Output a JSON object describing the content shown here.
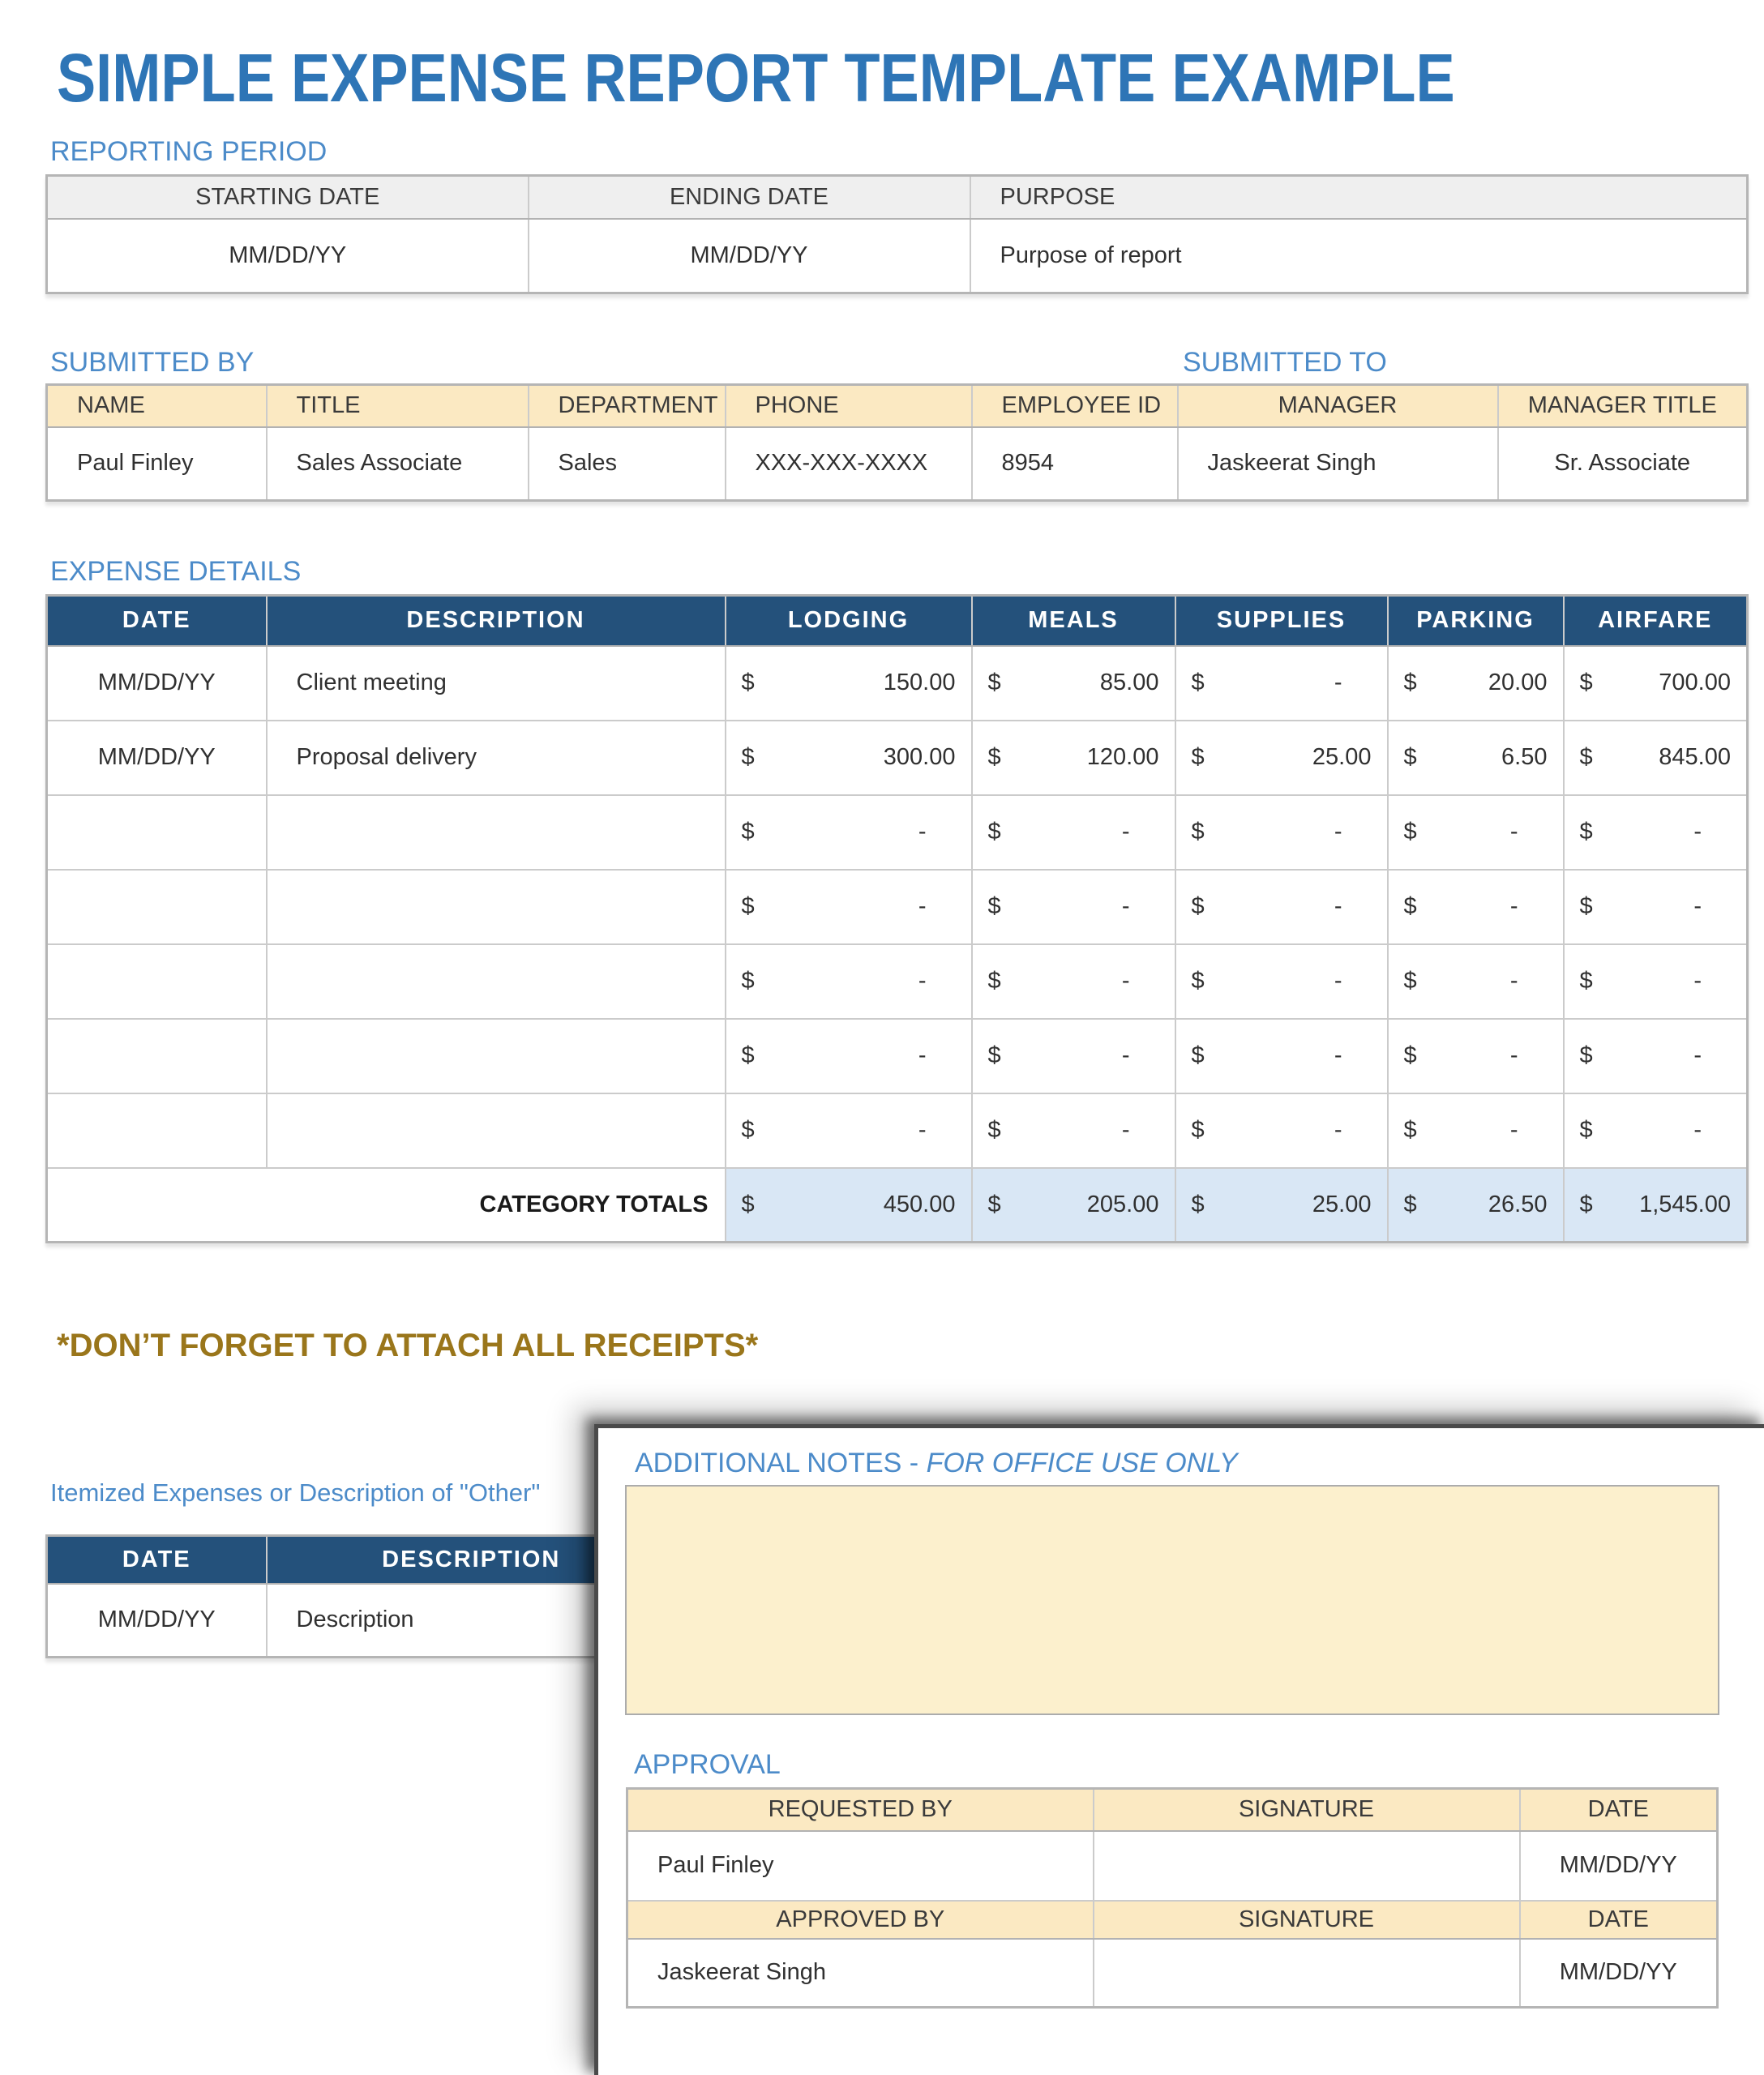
{
  "title": "SIMPLE EXPENSE REPORT TEMPLATE EXAMPLE",
  "colors": {
    "title_blue": "#2E75B6",
    "label_blue": "#4C8BC9",
    "dark_header": "#24517B",
    "tan_header": "#FBE9C2",
    "gray_header": "#EFEFEF",
    "totals_blue": "#D9E7F5",
    "gold_note": "#9A761B",
    "notes_box_bg": "#FCF0CD"
  },
  "reporting_period": {
    "label": "REPORTING PERIOD",
    "headers": [
      "STARTING DATE",
      "ENDING DATE",
      "PURPOSE"
    ],
    "row": [
      "MM/DD/YY",
      "MM/DD/YY",
      "Purpose of report"
    ]
  },
  "submitted": {
    "label_by": "SUBMITTED BY",
    "label_to": "SUBMITTED TO",
    "headers": [
      "NAME",
      "TITLE",
      "DEPARTMENT",
      "PHONE",
      "EMPLOYEE ID",
      "MANAGER",
      "MANAGER TITLE"
    ],
    "row": [
      "Paul Finley",
      "Sales Associate",
      "Sales",
      "XXX-XXX-XXXX",
      "8954",
      "Jaskeerat Singh",
      "Sr. Associate"
    ]
  },
  "expense_details": {
    "label": "EXPENSE DETAILS",
    "currency": "$",
    "headers": [
      "DATE",
      "DESCRIPTION",
      "LODGING",
      "MEALS",
      "SUPPLIES",
      "PARKING",
      "AIRFARE"
    ],
    "rows": [
      {
        "date": "MM/DD/YY",
        "description": "Client meeting",
        "amounts": [
          "150.00",
          "85.00",
          "-",
          "20.00",
          "700.00"
        ]
      },
      {
        "date": "MM/DD/YY",
        "description": "Proposal delivery",
        "amounts": [
          "300.00",
          "120.00",
          "25.00",
          "6.50",
          "845.00"
        ]
      },
      {
        "date": "",
        "description": "",
        "amounts": [
          "-",
          "-",
          "-",
          "-",
          "-"
        ]
      },
      {
        "date": "",
        "description": "",
        "amounts": [
          "-",
          "-",
          "-",
          "-",
          "-"
        ]
      },
      {
        "date": "",
        "description": "",
        "amounts": [
          "-",
          "-",
          "-",
          "-",
          "-"
        ]
      },
      {
        "date": "",
        "description": "",
        "amounts": [
          "-",
          "-",
          "-",
          "-",
          "-"
        ]
      },
      {
        "date": "",
        "description": "",
        "amounts": [
          "-",
          "-",
          "-",
          "-",
          "-"
        ]
      }
    ],
    "totals_label": "CATEGORY TOTALS",
    "totals": [
      "450.00",
      "205.00",
      "25.00",
      "26.50",
      "1,545.00"
    ]
  },
  "receipts_note": "*DON’T FORGET TO ATTACH ALL RECEIPTS*",
  "itemized": {
    "label": "Itemized Expenses or Description of \"Other\"",
    "headers": [
      "DATE",
      "DESCRIPTION"
    ],
    "row": [
      "MM/DD/YY",
      "Description"
    ]
  },
  "notes_panel": {
    "title_regular": "ADDITIONAL NOTES - ",
    "title_italic": "FOR OFFICE USE ONLY"
  },
  "approval": {
    "label": "APPROVAL",
    "header_requested": [
      "REQUESTED BY",
      "SIGNATURE",
      "DATE"
    ],
    "row_requested": [
      "Paul Finley",
      "",
      "MM/DD/YY"
    ],
    "header_approved": [
      "APPROVED BY",
      "SIGNATURE",
      "DATE"
    ],
    "row_approved": [
      "Jaskeerat Singh",
      "",
      "MM/DD/YY"
    ]
  }
}
